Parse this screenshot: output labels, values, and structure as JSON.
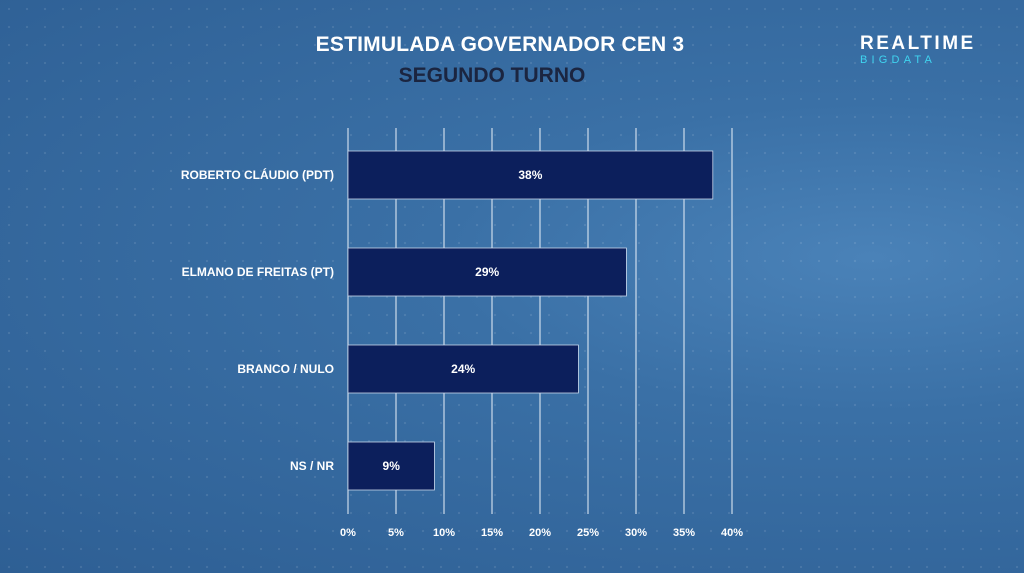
{
  "header": {
    "title": "ESTIMULADA GOVERNADOR CEN 3",
    "subtitle": "SEGUNDO TURNO"
  },
  "logo": {
    "top": "REALTIME",
    "bottom": "BIGDATA"
  },
  "colors": {
    "bar": "#0c1f5c",
    "gridline": "#e6eef7",
    "title": "#ffffff",
    "subtitle": "#1b2540",
    "logo_accent": "#3fd4f0"
  },
  "chart_data": {
    "type": "bar",
    "orientation": "horizontal",
    "title": "ESTIMULADA GOVERNADOR CEN 3",
    "subtitle": "SEGUNDO TURNO",
    "categories": [
      "ROBERTO CLÁUDIO (PDT)",
      "ELMANO DE FREITAS (PT)",
      "BRANCO / NULO",
      "NS / NR"
    ],
    "values": [
      38,
      29,
      24,
      9
    ],
    "value_labels": [
      "38%",
      "29%",
      "24%",
      "9%"
    ],
    "xlim": [
      0,
      40
    ],
    "ticks": [
      0,
      5,
      10,
      15,
      20,
      25,
      30,
      35,
      40
    ],
    "tick_labels": [
      "0%",
      "5%",
      "10%",
      "15%",
      "20%",
      "25%",
      "30%",
      "35%",
      "40%"
    ],
    "grid": true,
    "legend": "none"
  }
}
